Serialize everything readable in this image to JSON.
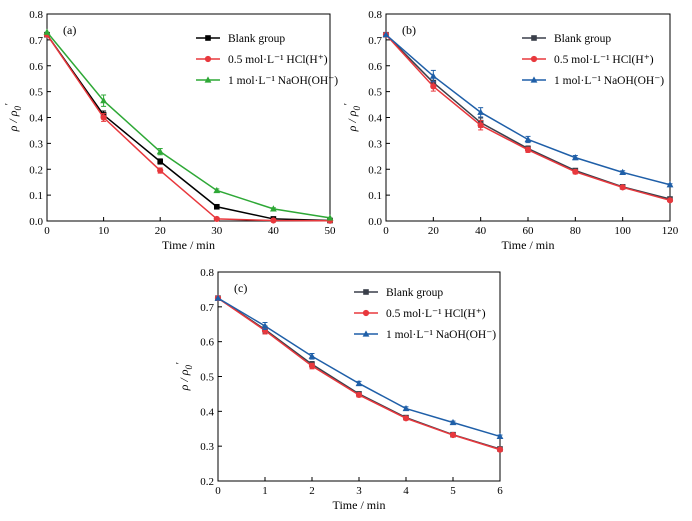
{
  "chart_data": [
    {
      "type": "line",
      "panel_label": "(a)",
      "xlabel": "Time / min",
      "ylabel_main": "ρ / ρ",
      "ylabel_sub": "0",
      "ylabel_prime": "′",
      "xlim": [
        0,
        50
      ],
      "ylim": [
        0,
        0.8
      ],
      "xticks": [
        0,
        10,
        20,
        30,
        40,
        50
      ],
      "yticks": [
        0.0,
        0.1,
        0.2,
        0.3,
        0.4,
        0.5,
        0.6,
        0.7,
        0.8
      ],
      "legend_position": "top-right",
      "series": [
        {
          "name": "Blank group",
          "color": "#000000",
          "marker": "square",
          "x": [
            0,
            10,
            20,
            30,
            40,
            50
          ],
          "y": [
            0.72,
            0.41,
            0.23,
            0.055,
            0.008,
            0.002
          ],
          "err": [
            0,
            0.015,
            0.01,
            0.005,
            0.003,
            0
          ]
        },
        {
          "name": "0.5 mol·L⁻¹ HCl(H⁺)",
          "color": "#e8383d",
          "marker": "circle",
          "x": [
            0,
            10,
            20,
            30,
            40,
            50
          ],
          "y": [
            0.72,
            0.4,
            0.195,
            0.008,
            0.002,
            0.001
          ],
          "err": [
            0,
            0.015,
            0.01,
            0.004,
            0,
            0
          ]
        },
        {
          "name": "1 mol·L⁻¹ NaOH(OH⁻)",
          "color": "#2ea836",
          "marker": "triangle",
          "x": [
            0,
            10,
            20,
            30,
            40,
            50
          ],
          "y": [
            0.73,
            0.465,
            0.268,
            0.118,
            0.047,
            0.012
          ],
          "err": [
            0,
            0.022,
            0.012,
            0.006,
            0.004,
            0
          ]
        }
      ]
    },
    {
      "type": "line",
      "panel_label": "(b)",
      "xlabel": "Time / min",
      "ylabel_main": "ρ / ρ",
      "ylabel_sub": "0",
      "ylabel_prime": "′",
      "xlim": [
        0,
        120
      ],
      "ylim": [
        0,
        0.8
      ],
      "xticks": [
        0,
        20,
        40,
        60,
        80,
        100,
        120
      ],
      "yticks": [
        0.0,
        0.1,
        0.2,
        0.3,
        0.4,
        0.5,
        0.6,
        0.7,
        0.8
      ],
      "legend_position": "top-right",
      "series": [
        {
          "name": "Blank group",
          "color": "#3a3f4a",
          "marker": "square",
          "x": [
            0,
            20,
            40,
            60,
            80,
            100,
            120
          ],
          "y": [
            0.72,
            0.535,
            0.38,
            0.28,
            0.195,
            0.132,
            0.085
          ],
          "err": [
            0,
            0.02,
            0.018,
            0.01,
            0.008,
            0.006,
            0.005
          ]
        },
        {
          "name": "0.5 mol·L⁻¹ HCl(H⁺)",
          "color": "#e8383d",
          "marker": "circle",
          "x": [
            0,
            20,
            40,
            60,
            80,
            100,
            120
          ],
          "y": [
            0.72,
            0.52,
            0.37,
            0.275,
            0.19,
            0.13,
            0.08
          ],
          "err": [
            0,
            0.018,
            0.018,
            0.01,
            0.008,
            0.006,
            0.005
          ]
        },
        {
          "name": "1 mol·L⁻¹ NaOH(OH⁻)",
          "color": "#1f5fa8",
          "marker": "triangle",
          "x": [
            0,
            20,
            40,
            60,
            80,
            100,
            120
          ],
          "y": [
            0.72,
            0.56,
            0.42,
            0.315,
            0.245,
            0.188,
            0.14
          ],
          "err": [
            0,
            0.022,
            0.018,
            0.012,
            0.008,
            0.006,
            0.004
          ]
        }
      ]
    },
    {
      "type": "line",
      "panel_label": "(c)",
      "xlabel": "Time / min",
      "ylabel_main": "ρ / ρ",
      "ylabel_sub": "0",
      "ylabel_prime": "′",
      "xlim": [
        0,
        6
      ],
      "ylim": [
        0.2,
        0.8
      ],
      "xticks": [
        0,
        1,
        2,
        3,
        4,
        5,
        6
      ],
      "yticks": [
        0.2,
        0.3,
        0.4,
        0.5,
        0.6,
        0.7,
        0.8
      ],
      "legend_position": "top-right",
      "series": [
        {
          "name": "Blank group",
          "color": "#3a3f4a",
          "marker": "square",
          "x": [
            0,
            1,
            2,
            3,
            4,
            5,
            6
          ],
          "y": [
            0.725,
            0.635,
            0.535,
            0.45,
            0.382,
            0.333,
            0.292
          ],
          "err": [
            0,
            0.01,
            0.008,
            0.006,
            0.005,
            0.004,
            0.004
          ]
        },
        {
          "name": "0.5 mol·L⁻¹ HCl(H⁺)",
          "color": "#e8383d",
          "marker": "circle",
          "x": [
            0,
            1,
            2,
            3,
            4,
            5,
            6
          ],
          "y": [
            0.725,
            0.632,
            0.53,
            0.447,
            0.38,
            0.332,
            0.29
          ],
          "err": [
            0,
            0.01,
            0.008,
            0.006,
            0.005,
            0.004,
            0.004
          ]
        },
        {
          "name": "1 mol·L⁻¹ NaOH(OH⁻)",
          "color": "#1f5fa8",
          "marker": "triangle",
          "x": [
            0,
            1,
            2,
            3,
            4,
            5,
            6
          ],
          "y": [
            0.725,
            0.645,
            0.558,
            0.48,
            0.408,
            0.368,
            0.328
          ],
          "err": [
            0,
            0.01,
            0.008,
            0.006,
            0.005,
            0.004,
            0.004
          ]
        }
      ]
    }
  ]
}
